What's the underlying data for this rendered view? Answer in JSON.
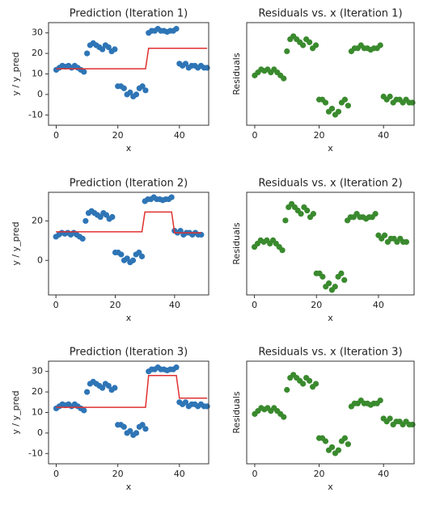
{
  "chart_data": [
    {
      "type": "scatter",
      "title": "Prediction (Iteration 1)",
      "xlabel": "x",
      "ylabel": "y / y_pred",
      "x": [
        0,
        1,
        2,
        3,
        4,
        5,
        6,
        7,
        8,
        9,
        10,
        11,
        12,
        13,
        14,
        15,
        16,
        17,
        18,
        19,
        20,
        21,
        22,
        23,
        24,
        25,
        26,
        27,
        28,
        29,
        30,
        31,
        32,
        33,
        34,
        35,
        36,
        37,
        38,
        39,
        40,
        41,
        42,
        43,
        44,
        45,
        46,
        47,
        48,
        49
      ],
      "values": [
        12,
        13,
        14,
        13.5,
        14,
        13,
        14,
        13,
        12,
        11,
        20,
        24,
        25,
        24,
        23,
        22,
        24,
        23,
        21,
        22,
        4,
        4,
        3,
        0,
        1,
        -1,
        0,
        3,
        4,
        2,
        30,
        31,
        31,
        32,
        31,
        31,
        30.5,
        31,
        31,
        32,
        15,
        14,
        15,
        13,
        14,
        14,
        13,
        14,
        13,
        13
      ],
      "color": "#2e75b6",
      "fit_values": [
        12.5,
        12.5,
        12.5,
        12.5,
        12.5,
        12.5,
        12.5,
        12.5,
        12.5,
        12.5,
        12.5,
        12.5,
        12.5,
        12.5,
        12.5,
        12.5,
        12.5,
        12.5,
        12.5,
        12.5,
        12.5,
        12.5,
        12.5,
        12.5,
        12.5,
        12.5,
        12.5,
        12.5,
        12.5,
        12.5,
        22.5,
        22.5,
        22.5,
        22.5,
        22.5,
        22.5,
        22.5,
        22.5,
        22.5,
        22.5,
        22.5,
        22.5,
        22.5,
        22.5,
        22.5,
        22.5,
        22.5,
        22.5,
        22.5,
        22.5
      ],
      "fit_color": "#e03030",
      "xlim": [
        -2.5,
        49.5
      ],
      "xticks": [
        0,
        20,
        40
      ],
      "ylim": [
        -15,
        35
      ],
      "yticks": [
        -10,
        0,
        10,
        20,
        30
      ]
    },
    {
      "type": "scatter",
      "title": "Residuals vs. x (Iteration 1)",
      "xlabel": "x",
      "ylabel": "Residuals",
      "x": [
        0,
        1,
        2,
        3,
        4,
        5,
        6,
        7,
        8,
        9,
        10,
        11,
        12,
        13,
        14,
        15,
        16,
        17,
        18,
        19,
        20,
        21,
        22,
        23,
        24,
        25,
        26,
        27,
        28,
        29,
        30,
        31,
        32,
        33,
        34,
        35,
        36,
        37,
        38,
        39,
        40,
        41,
        42,
        43,
        44,
        45,
        46,
        47,
        48,
        49
      ],
      "values": [
        -0.5,
        0.5,
        1.5,
        1,
        1.5,
        0.5,
        1.5,
        0.5,
        -0.5,
        -1.5,
        7.5,
        11.5,
        12.5,
        11.5,
        10.5,
        9.5,
        11.5,
        10.5,
        8.5,
        9.5,
        -8.5,
        -8.5,
        -9.5,
        -12.5,
        -11.5,
        -13.5,
        -12.5,
        -9.5,
        -8.5,
        -10.5,
        7.5,
        8.5,
        8.5,
        9.5,
        8.5,
        8.5,
        8,
        8.5,
        8.5,
        9.5,
        -7.5,
        -8.5,
        -7.5,
        -9.5,
        -8.5,
        -8.5,
        -9.5,
        -8.5,
        -9.5,
        -9.5
      ],
      "color": "#3a8a2e",
      "xlim": [
        -2.5,
        49.5
      ],
      "xticks": [
        0,
        20,
        40
      ],
      "ylim": [
        -17,
        17
      ]
    },
    {
      "type": "scatter",
      "title": "Prediction (Iteration 2)",
      "xlabel": "x",
      "ylabel": "y / y_pred",
      "x": [
        0,
        1,
        2,
        3,
        4,
        5,
        6,
        7,
        8,
        9,
        10,
        11,
        12,
        13,
        14,
        15,
        16,
        17,
        18,
        19,
        20,
        21,
        22,
        23,
        24,
        25,
        26,
        27,
        28,
        29,
        30,
        31,
        32,
        33,
        34,
        35,
        36,
        37,
        38,
        39,
        40,
        41,
        42,
        43,
        44,
        45,
        46,
        47,
        48,
        49
      ],
      "values": [
        12,
        13,
        14,
        13.5,
        14,
        13,
        14,
        13,
        12,
        11,
        20,
        24,
        25,
        24,
        23,
        22,
        24,
        23,
        21,
        22,
        4,
        4,
        3,
        0,
        1,
        -1,
        0,
        3,
        4,
        2,
        30,
        31,
        31,
        32,
        31,
        31,
        30.5,
        31,
        31,
        32,
        15,
        14,
        15,
        13,
        14,
        14,
        13,
        14,
        13,
        13
      ],
      "color": "#2e75b6",
      "fit_values": [
        14.5,
        14.5,
        14.5,
        14.5,
        14.5,
        14.5,
        14.5,
        14.5,
        14.5,
        14.5,
        14.5,
        14.5,
        14.5,
        14.5,
        14.5,
        14.5,
        14.5,
        14.5,
        14.5,
        14.5,
        14.5,
        14.5,
        14.5,
        14.5,
        14.5,
        14.5,
        14.5,
        14.5,
        14.5,
        14.5,
        24.5,
        24.5,
        24.5,
        24.5,
        24.5,
        24.5,
        24.5,
        24.5,
        24.5,
        24.5,
        14,
        14,
        14,
        14,
        14,
        14,
        14,
        14,
        14,
        14
      ],
      "fit_color": "#e03030",
      "xlim": [
        -2.5,
        51.5
      ],
      "xticks": [
        0,
        20,
        40
      ],
      "ylim": [
        -17.5,
        34.5
      ],
      "yticks": [
        0,
        20
      ]
    },
    {
      "type": "scatter",
      "title": "Residuals vs. x (Iteration 2)",
      "xlabel": "x",
      "ylabel": "Residuals",
      "x": [
        0,
        1,
        2,
        3,
        4,
        5,
        6,
        7,
        8,
        9,
        10,
        11,
        12,
        13,
        14,
        15,
        16,
        17,
        18,
        19,
        20,
        21,
        22,
        23,
        24,
        25,
        26,
        27,
        28,
        29,
        30,
        31,
        32,
        33,
        34,
        35,
        36,
        37,
        38,
        39,
        40,
        41,
        42,
        43,
        44,
        45,
        46,
        47,
        48,
        49
      ],
      "values": [
        -2.5,
        -1.5,
        -0.5,
        -1,
        -0.5,
        -1.5,
        -0.5,
        -1.5,
        -2.5,
        -3.5,
        5.5,
        9.5,
        10.5,
        9.5,
        8.5,
        7.5,
        9.5,
        8.5,
        6.5,
        7.5,
        -10.5,
        -10.5,
        -11.5,
        -14.5,
        -13.5,
        -15.5,
        -14.5,
        -11.5,
        -10.5,
        -12.5,
        5.5,
        6.5,
        6.5,
        7.5,
        6.5,
        6.5,
        6,
        6.5,
        6.5,
        7.5,
        1,
        0,
        1,
        -1,
        0,
        0,
        -1,
        0,
        -1,
        -1
      ],
      "color": "#3a8a2e",
      "xlim": [
        -2.5,
        51.5
      ],
      "xticks": [
        0,
        20,
        40
      ],
      "ylim": [
        -17,
        14
      ]
    },
    {
      "type": "scatter",
      "title": "Prediction (Iteration 3)",
      "xlabel": "x",
      "ylabel": "y / y_pred",
      "x": [
        0,
        1,
        2,
        3,
        4,
        5,
        6,
        7,
        8,
        9,
        10,
        11,
        12,
        13,
        14,
        15,
        16,
        17,
        18,
        19,
        20,
        21,
        22,
        23,
        24,
        25,
        26,
        27,
        28,
        29,
        30,
        31,
        32,
        33,
        34,
        35,
        36,
        37,
        38,
        39,
        40,
        41,
        42,
        43,
        44,
        45,
        46,
        47,
        48,
        49
      ],
      "values": [
        12,
        13,
        14,
        13.5,
        14,
        13,
        14,
        13,
        12,
        11,
        20,
        24,
        25,
        24,
        23,
        22,
        24,
        23,
        21,
        22,
        4,
        4,
        3,
        0,
        1,
        -1,
        0,
        3,
        4,
        2,
        30,
        31,
        31,
        32,
        31,
        31,
        30.5,
        31,
        31,
        32,
        15,
        14,
        15,
        13,
        14,
        14,
        13,
        14,
        13,
        13
      ],
      "color": "#2e75b6",
      "fit_values": [
        12.5,
        12.5,
        12.5,
        12.5,
        12.5,
        12.5,
        12.5,
        12.5,
        12.5,
        12.5,
        12.5,
        12.5,
        12.5,
        12.5,
        12.5,
        12.5,
        12.5,
        12.5,
        12.5,
        12.5,
        12.5,
        12.5,
        12.5,
        12.5,
        12.5,
        12.5,
        12.5,
        12.5,
        12.5,
        12.5,
        28,
        28,
        28,
        28,
        28,
        28,
        28,
        28,
        28,
        28,
        17,
        17,
        17,
        17,
        17,
        17,
        17,
        17,
        17,
        17
      ],
      "fit_color": "#e03030",
      "xlim": [
        -2.5,
        49.5
      ],
      "xticks": [
        0,
        20,
        40
      ],
      "ylim": [
        -15,
        35
      ],
      "yticks": [
        -10,
        0,
        10,
        20,
        30
      ]
    },
    {
      "type": "scatter",
      "title": "Residuals vs. x (Iteration 3)",
      "xlabel": "x",
      "ylabel": "Residuals",
      "x": [
        0,
        1,
        2,
        3,
        4,
        5,
        6,
        7,
        8,
        9,
        10,
        11,
        12,
        13,
        14,
        15,
        16,
        17,
        18,
        19,
        20,
        21,
        22,
        23,
        24,
        25,
        26,
        27,
        28,
        29,
        30,
        31,
        32,
        33,
        34,
        35,
        36,
        37,
        38,
        39,
        40,
        41,
        42,
        43,
        44,
        45,
        46,
        47,
        48,
        49
      ],
      "values": [
        -0.5,
        0.5,
        1.5,
        1,
        1.5,
        0.5,
        1.5,
        0.5,
        -0.5,
        -1.5,
        7.5,
        11.5,
        12.5,
        11.5,
        10.5,
        9.5,
        11.5,
        10.5,
        8.5,
        9.5,
        -8.5,
        -8.5,
        -9.5,
        -12.5,
        -11.5,
        -13.5,
        -12.5,
        -9.5,
        -8.5,
        -10.5,
        2,
        3,
        3,
        4,
        3,
        3,
        2.5,
        3,
        3,
        4,
        -2,
        -3,
        -2,
        -4,
        -3,
        -3,
        -4,
        -3,
        -4,
        -4
      ],
      "color": "#3a8a2e",
      "xlim": [
        -2.5,
        49.5
      ],
      "xticks": [
        0,
        20,
        40
      ],
      "ylim": [
        -17,
        17
      ]
    }
  ]
}
